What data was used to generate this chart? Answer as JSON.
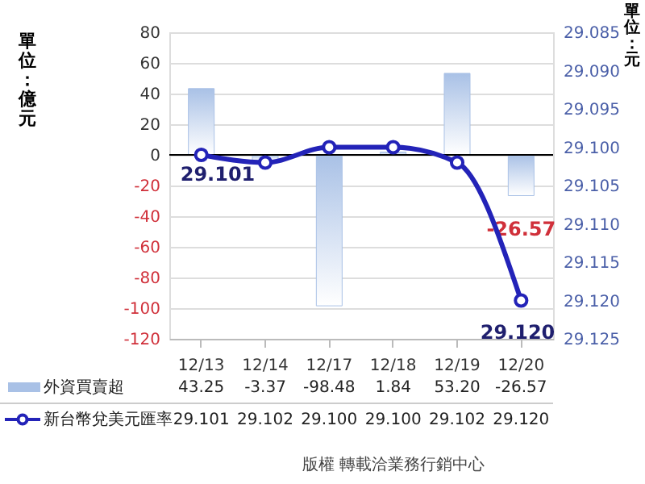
{
  "chart_data": {
    "type": "bar",
    "categories": [
      "12/13",
      "12/14",
      "12/17",
      "12/18",
      "12/19",
      "12/20"
    ],
    "series": [
      {
        "name": "外資買賣超",
        "type": "bar",
        "color": "#a9c1e6",
        "values": [
          43.25,
          -3.37,
          -98.48,
          1.84,
          53.2,
          -26.57
        ],
        "value_labels": [
          "43.25",
          "-3.37",
          "-98.48",
          "1.84",
          "53.20",
          "-26.57"
        ]
      },
      {
        "name": "新台幣兌美元匯率",
        "type": "line",
        "axis": "y2",
        "color": "#2323b8",
        "values": [
          29.101,
          29.102,
          29.1,
          29.1,
          29.102,
          29.12
        ],
        "value_labels": [
          "29.101",
          "29.102",
          "29.100",
          "29.100",
          "29.102",
          "29.120"
        ]
      }
    ],
    "ylabel": "單位：億元",
    "y2label": "單位：元",
    "ylim": [
      -120,
      80
    ],
    "yticks": [
      -120,
      -100,
      -80,
      -60,
      -40,
      -20,
      0,
      20,
      40,
      60,
      80
    ],
    "y2lim": [
      29.125,
      29.085
    ],
    "y2ticks": [
      {
        "value": 29.085,
        "label": "29.085"
      },
      {
        "value": 29.09,
        "label": "29.090"
      },
      {
        "value": 29.095,
        "label": "29.095"
      },
      {
        "value": 29.1,
        "label": "29.100"
      },
      {
        "value": 29.105,
        "label": "29.105"
      },
      {
        "value": 29.11,
        "label": "29.110"
      },
      {
        "value": 29.115,
        "label": "29.115"
      },
      {
        "value": 29.12,
        "label": "29.120"
      },
      {
        "value": 29.125,
        "label": "29.125"
      }
    ],
    "ref_lines": [
      {
        "axis": "y",
        "value": 0,
        "color": "#000000"
      }
    ],
    "annotations": [
      "29.101",
      {
        "text": "-26.57",
        "x": "12/20",
        "y": -26.57
      },
      "29.120",
      "版權 轉載洽業務行銷中心"
    ],
    "data_labels": true,
    "grid": "y",
    "legend": "bottom",
    "marker": "circle",
    "line_style": "solid"
  }
}
